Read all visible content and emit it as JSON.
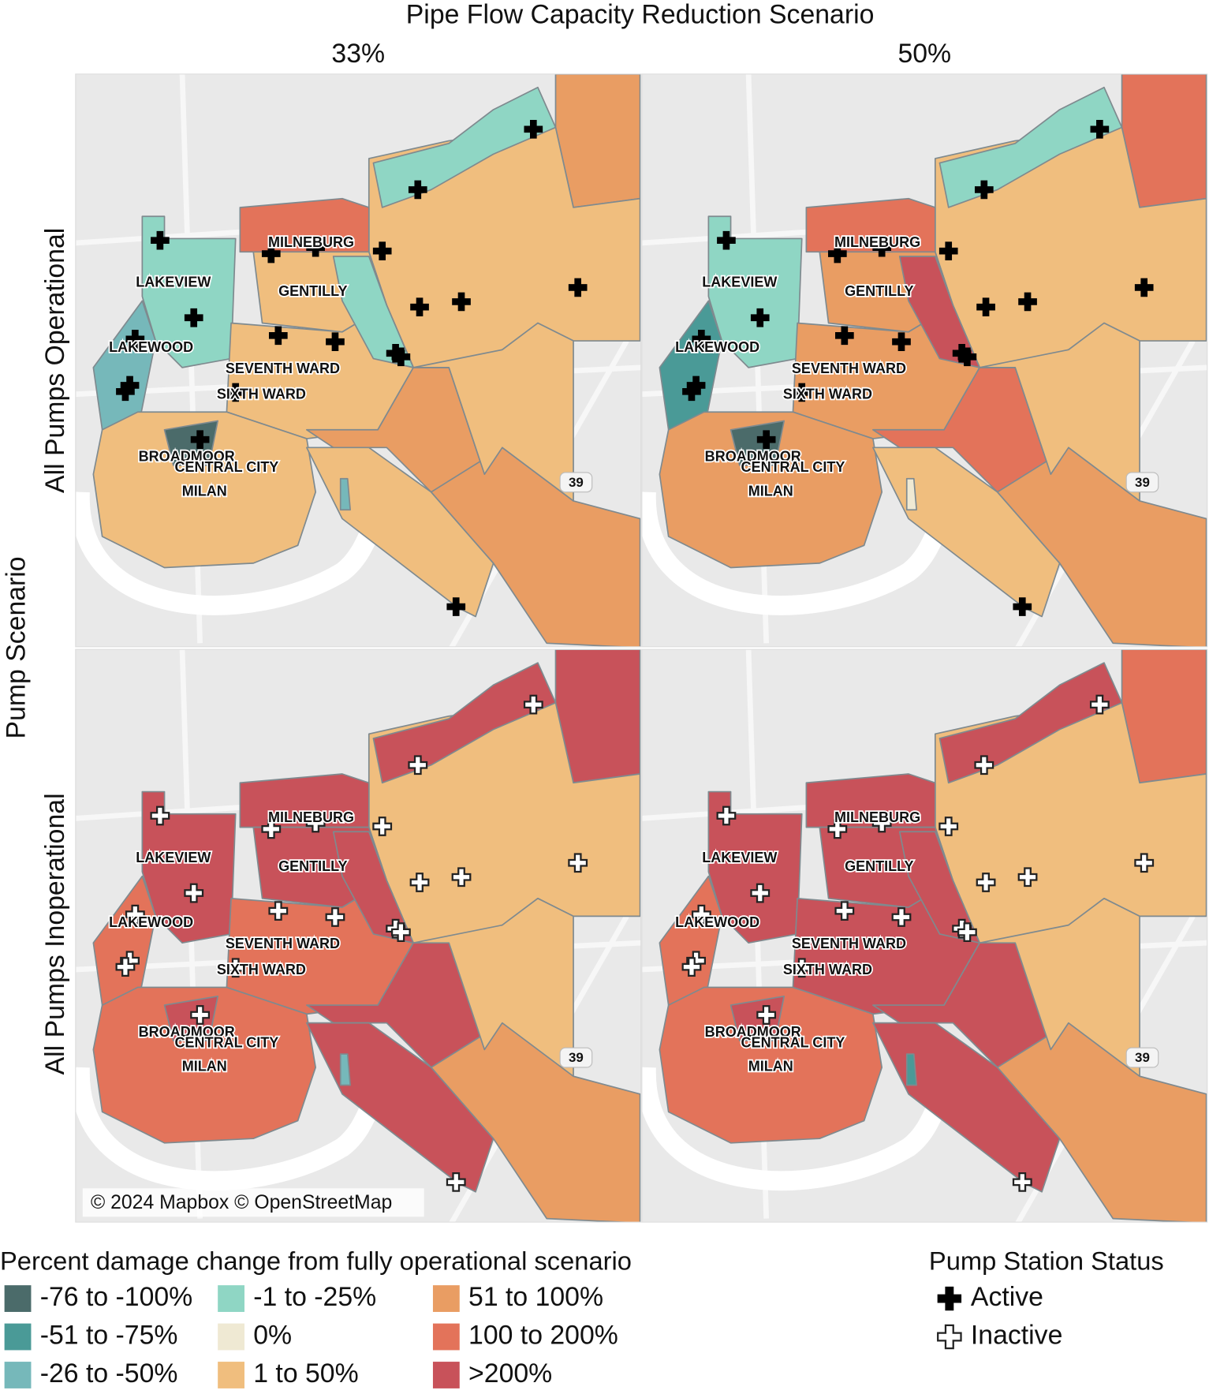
{
  "header": {
    "title": "Pipe Flow Capacity Reduction Scenario",
    "columns": [
      "33%",
      "50%"
    ]
  },
  "row_header": {
    "title": "Pump Scenario",
    "rows": [
      "All Pumps Operational",
      "All Pumps Inoperational"
    ]
  },
  "map": {
    "neighborhoods": [
      "LAKEVIEW",
      "LAKEWOOD",
      "SEVENTH WARD",
      "SIXTH WARD",
      "BROADMOOR",
      "CENTRAL CITY",
      "MILAN",
      "MILNEBURG",
      "GENTILLY"
    ],
    "shield": "39",
    "attribution": "© 2024 Mapbox © OpenStreetMap"
  },
  "panels": [
    [
      {
        "pump_status": 0,
        "district_classes": [
          6,
          5,
          3,
          7,
          5,
          3,
          2,
          5,
          3,
          5,
          0,
          6,
          5,
          6,
          5,
          2
        ]
      },
      {
        "pump_status": 0,
        "district_classes": [
          7,
          5,
          3,
          7,
          6,
          3,
          1,
          6,
          8,
          6,
          0,
          7,
          5,
          6,
          5,
          4
        ]
      }
    ],
    [
      {
        "pump_status": 1,
        "district_classes": [
          8,
          5,
          8,
          8,
          8,
          8,
          7,
          7,
          8,
          7,
          8,
          8,
          8,
          6,
          5,
          2
        ]
      },
      {
        "pump_status": 1,
        "district_classes": [
          7,
          5,
          8,
          8,
          8,
          8,
          7,
          8,
          8,
          7,
          8,
          8,
          8,
          6,
          5,
          1
        ]
      }
    ]
  ],
  "legend": {
    "title": "Percent damage change from fully operational scenario",
    "items": [
      {
        "label": "-76 to -100%",
        "color": "#4b6b6a"
      },
      {
        "label": "-51 to -75%",
        "color": "#4a9a97"
      },
      {
        "label": "-26 to -50%",
        "color": "#76b8ba"
      },
      {
        "label": "-1 to -25%",
        "color": "#8fd6c4"
      },
      {
        "label": "0%",
        "color": "#efe9d3"
      },
      {
        "label": "1 to 50%",
        "color": "#f0be7e"
      },
      {
        "label": "51 to 100%",
        "color": "#e99d63"
      },
      {
        "label": "100 to 200%",
        "color": "#e3735a"
      },
      {
        "label": ">200%",
        "color": "#c8525a"
      }
    ]
  },
  "pump_legend": {
    "title": "Pump Station Status",
    "items": [
      "Active",
      "Inactive"
    ]
  }
}
